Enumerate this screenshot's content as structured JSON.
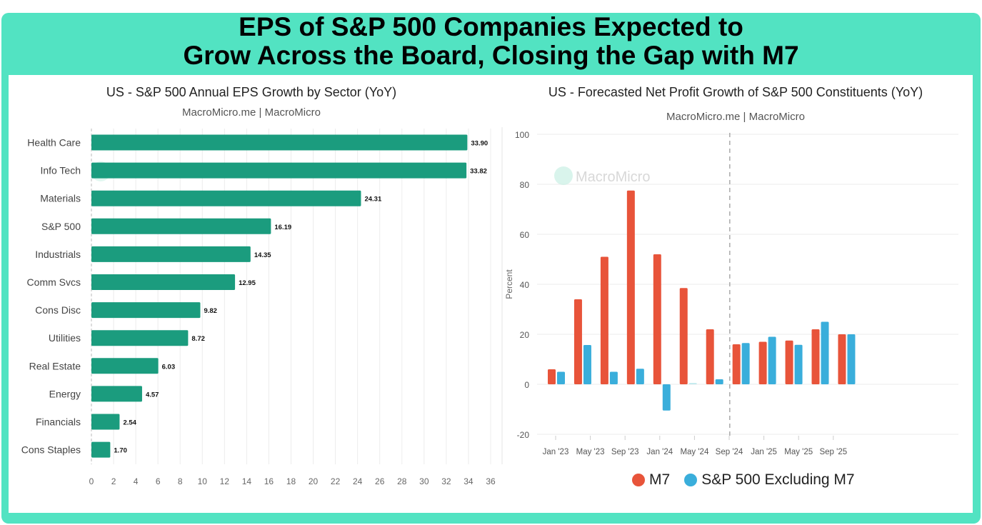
{
  "headline": {
    "line1": "EPS of S&P 500 Companies Expected to",
    "line2": "Grow Across the Board, Closing the Gap with M7"
  },
  "colors": {
    "frame": "#52e3c2",
    "bar_green": "#1b9c7e",
    "m7_red": "#e8543a",
    "sp_blue": "#3aaedb"
  },
  "chart_data": [
    {
      "type": "bar",
      "orientation": "horizontal",
      "title": "US - S&P 500 Annual EPS Growth by Sector (YoY)",
      "subtitle": "MacroMicro.me | MacroMicro",
      "watermark": "MacroMicro",
      "categories": [
        "Health Care",
        "Info Tech",
        "Materials",
        "S&P 500",
        "Industrials",
        "Comm Svcs",
        "Cons Disc",
        "Utilities",
        "Real Estate",
        "Energy",
        "Financials",
        "Cons Staples"
      ],
      "values": [
        33.9,
        33.82,
        24.31,
        16.19,
        14.35,
        12.95,
        9.82,
        8.72,
        6.03,
        4.57,
        2.54,
        1.7
      ],
      "value_labels": [
        "33.90",
        "33.82",
        "24.31",
        "16.19",
        "14.35",
        "12.95",
        "9.82",
        "8.72",
        "6.03",
        "4.57",
        "2.54",
        "1.70"
      ],
      "xlim": [
        0,
        36
      ],
      "xticks": [
        "0",
        "2",
        "4",
        "6",
        "8",
        "10",
        "12",
        "14",
        "16",
        "18",
        "20",
        "22",
        "24",
        "26",
        "28",
        "30",
        "32",
        "34",
        "36"
      ],
      "xlabel": "",
      "ylabel": "",
      "grid": true
    },
    {
      "type": "bar",
      "orientation": "vertical",
      "title": "US - Forecasted Net Profit Growth of S&P 500 Constituents (YoY)",
      "subtitle": "MacroMicro.me | MacroMicro",
      "watermark": "MacroMicro",
      "x": [
        "Q1 2023",
        "Q2 2023",
        "Q3 2023",
        "Q4 2023",
        "Q1 2024",
        "Q2 2024",
        "Q3 2024",
        "Q4 2024",
        "Q1 2025",
        "Q2 2025",
        "Q3 2025",
        "Q4 2025"
      ],
      "series": [
        {
          "name": "M7",
          "values": [
            6,
            34,
            51,
            77.5,
            52,
            38.5,
            22,
            16,
            17,
            17.5,
            22,
            20
          ]
        },
        {
          "name": "S&P 500 Excluding M7",
          "values": [
            5,
            15.7,
            5,
            6.2,
            -10.5,
            0.5,
            2,
            16.5,
            19,
            15.8,
            25,
            20
          ]
        }
      ],
      "xticks": [
        "Jan '23",
        "May '23",
        "Sep '23",
        "Jan '24",
        "May '24",
        "Sep '24",
        "Jan '25",
        "May '25",
        "Sep '25"
      ],
      "yticks": [
        "100",
        "80",
        "60",
        "40",
        "20",
        "0",
        "-20"
      ],
      "ylim": [
        -20,
        100
      ],
      "ylabel": "Percent",
      "xlabel": "",
      "forecast_divider_at": "Sep '24",
      "legend": {
        "position": "bottom",
        "entries": [
          "M7",
          "S&P 500 Excluding M7"
        ]
      },
      "grid": true
    }
  ]
}
